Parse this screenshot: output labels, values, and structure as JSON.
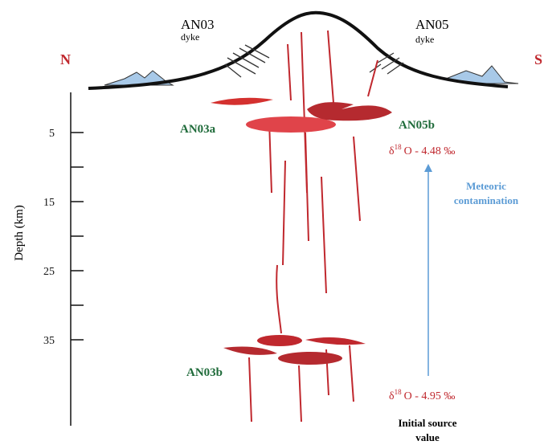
{
  "labels": {
    "an03": {
      "name": "AN03",
      "type": "dyke"
    },
    "an05": {
      "name": "AN05",
      "type": "dyke"
    },
    "north": "N",
    "south": "S",
    "an03a": "AN03a",
    "an05b": "AN05b",
    "an03b": "AN03b"
  },
  "isotope_top": {
    "symbol": "δ",
    "superscript": "18",
    "text": "O - 4.48 ‰"
  },
  "isotope_bottom": {
    "symbol": "δ",
    "superscript": "18",
    "text": "O - 4.95 ‰"
  },
  "arrow_label": [
    "Meteoric",
    "contamination"
  ],
  "source_label": [
    "Initial source",
    "value"
  ],
  "depth_axis": {
    "label": "Depth (km)",
    "ticks": [
      5,
      15,
      25,
      35
    ]
  }
}
